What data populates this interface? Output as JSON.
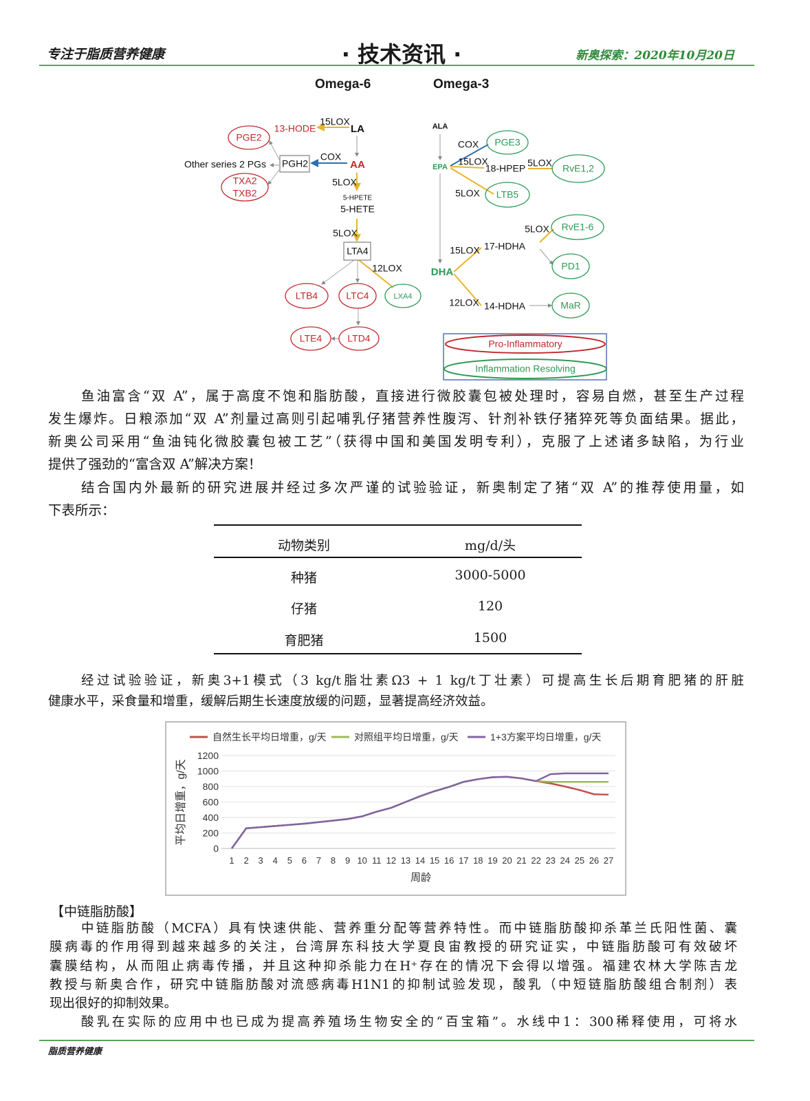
{
  "header": {
    "left_slogan": "专注于脂质营养健康",
    "title": "· 技术资讯 ·",
    "date": "新奥探索：2020年10月20日"
  },
  "diagram": {
    "omega6_title": "Omega-6",
    "omega3_title": "Omega-3",
    "omega6": {
      "LA": "LA",
      "15LOX": "15LOX",
      "13-HODE": "13-HODE",
      "AA": "AA",
      "COX": "COX",
      "PGH2": "PGH2",
      "other_pgs": "Other series 2 PGs",
      "PGE2": "PGE2",
      "TXA2": "TXA2",
      "TXB2": "TXB2",
      "5LOX_a": "5LOX",
      "5-HPETE": "5-HPETE",
      "5-HETE": "5-HETE",
      "5LOX_b": "5LOX",
      "LTA4": "LTA4",
      "12LOX": "12LOX",
      "LTB4": "LTB4",
      "LTC4": "LTC4",
      "LXA4": "LXA4",
      "LTD4": "LTD4",
      "LTE4": "LTE4"
    },
    "omega3": {
      "ALA": "ALA",
      "EPA": "EPA",
      "DHA": "DHA",
      "COX": "COX",
      "PGE3": "PGE3",
      "15LOX_a": "15LOX",
      "18-HPEP": "18-HPEP",
      "5LOX_a": "5LOX",
      "RvE1,2": "RvE1,2",
      "5LOX_b": "5LOX",
      "LTB5": "LTB5",
      "5LOX_c": "5LOX",
      "RvE1-6": "RvE1-6",
      "15LOX_b": "15LOX",
      "17-HDHA": "17-HDHA",
      "PD1": "PD1",
      "12LOX": "12LOX",
      "14-HDHA": "14-HDHA",
      "MaR": "MaR"
    },
    "legend": {
      "pro": "Pro-Inflammatory",
      "resolving": "Inflammation Resolving"
    },
    "colors": {
      "pro": "#c0282d",
      "resolving": "#2e9a55",
      "lox_arrow": "#e6b52c",
      "cox_arrow": "#2f6fb0"
    }
  },
  "para1": [
    "鱼油富含“双 A”，属于高度不饱和脂肪酸，直接进行微胶囊包被处理时，容易自燃，甚至生产过程",
    "发生爆炸。日粮添加“双 A”剂量过高则引起哺乳仔猪营养性腹泻、针剂补铁仔猪猝死等负面结果。据此，",
    "新奥公司采用“鱼油钝化微胶囊包被工艺”（获得中国和美国发明专利），克服了上述诸多缺陷，为行业",
    "提供了强劲的“富含双 A”解决方案！"
  ],
  "para2": [
    "结合国内外最新的研究进展并经过多次严谨的试验验证，新奥制定了猪“双 A”的推荐使用量，如",
    "下表所示："
  ],
  "table": {
    "headers": [
      "动物类别",
      "mg/d/头"
    ],
    "rows": [
      [
        "种猪",
        "3000-5000"
      ],
      [
        "仔猪",
        "120"
      ],
      [
        "育肥猪",
        "1500"
      ]
    ]
  },
  "para3": [
    "经过试验验证，新奥3+1模式（3 kg/t脂壮素Ω3 + 1 kg/t丁壮素）可提高生长后期育肥猪的肝脏",
    "健康水平，采食量和增重，缓解后期生长速度放缓的问题，显著提高经济效益。"
  ],
  "chart_data": {
    "type": "line",
    "xlabel": "周龄",
    "ylabel": "平均日增重，g/天",
    "ylim": [
      0,
      1200
    ],
    "yticks": [
      0,
      200,
      400,
      600,
      800,
      1000,
      1200
    ],
    "x": [
      1,
      2,
      3,
      4,
      5,
      6,
      7,
      8,
      9,
      10,
      11,
      12,
      13,
      14,
      15,
      16,
      17,
      18,
      19,
      20,
      21,
      22,
      23,
      24,
      25,
      26,
      27
    ],
    "legend_position": "top",
    "grid": true,
    "series": [
      {
        "name": "自然生长平均日增重，g/天",
        "color": "#c0504d",
        "values": [
          0,
          260,
          275,
          290,
          305,
          320,
          340,
          360,
          380,
          415,
          475,
          525,
          600,
          675,
          740,
          795,
          860,
          895,
          920,
          925,
          905,
          870,
          840,
          800,
          755,
          700,
          695
        ]
      },
      {
        "name": "对照组平均日增重，g/天",
        "color": "#9bbb59",
        "values": [
          0,
          260,
          275,
          290,
          305,
          320,
          340,
          360,
          380,
          415,
          475,
          525,
          600,
          675,
          740,
          795,
          860,
          895,
          920,
          925,
          905,
          870,
          860,
          860,
          860,
          860,
          860
        ]
      },
      {
        "name": "1+3方案平均日增重，g/天",
        "color": "#8064a2",
        "values": [
          0,
          260,
          275,
          290,
          305,
          320,
          340,
          360,
          380,
          415,
          475,
          525,
          600,
          675,
          740,
          795,
          860,
          895,
          920,
          925,
          905,
          870,
          960,
          970,
          970,
          970,
          970
        ]
      }
    ]
  },
  "section": {
    "heading": "【中链脂肪酸】",
    "lines": [
      "中链脂肪酸（MCFA）具有快速供能、营养重分配等营养特性。而中链脂肪酸抑杀革兰氏阳性菌、囊",
      "膜病毒的作用得到越来越多的关注，台湾屏东科技大学夏良宙教授的研究证实，中链脂肪酸可有效破坏",
      "囊膜结构，从而阻止病毒传播，并且这种抑杀能力在H⁺存在的情况下会得以增强。福建农林大学陈吉龙",
      "教授与新奥合作，研究中链脂肪酸对流感病毒H1N1的抑制试验发现，酸乳（中短链脂肪酸组合制剂）表",
      "现出很好的抑制效果。",
      "酸乳在实际的应用中也已成为提高养殖场生物安全的“百宝箱”。水线中1：300稀释使用，可将水"
    ]
  },
  "footer": {
    "text": "脂质营养健康"
  }
}
